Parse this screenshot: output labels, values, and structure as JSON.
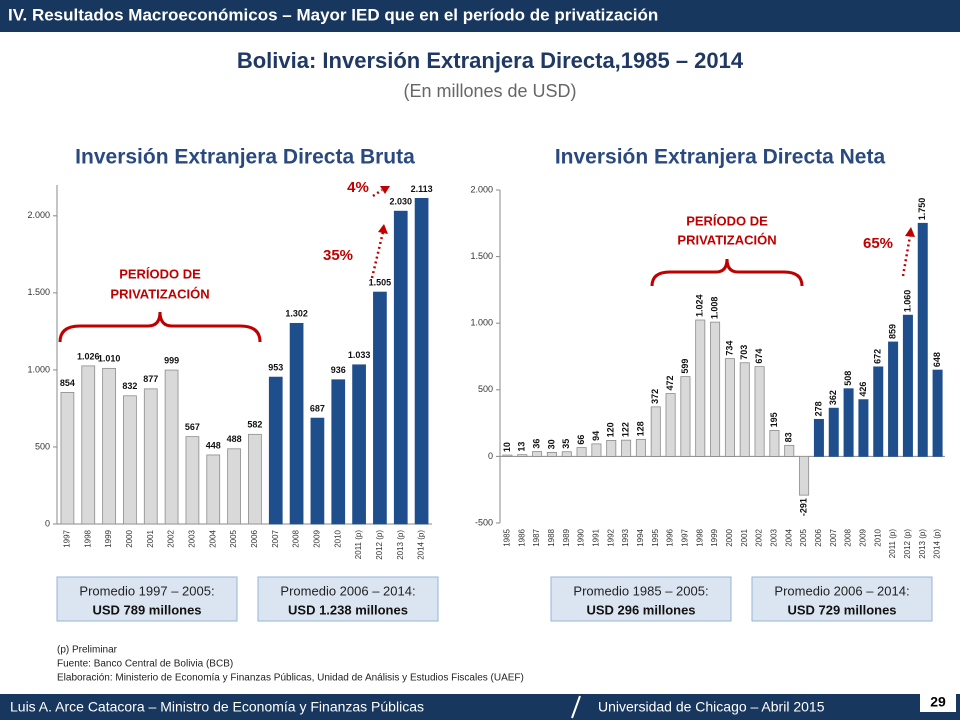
{
  "header": "IV. Resultados Macroeconómicos – Mayor IED que en el período de privatización",
  "title": "Bolivia: Inversión Extranjera Directa,1985 – 2014",
  "subtitle": "(En millones de USD)",
  "chart_data": [
    {
      "type": "bar",
      "title": "Inversión Extranjera Directa Bruta",
      "categories": [
        "1997",
        "1998",
        "1999",
        "2000",
        "2001",
        "2002",
        "2003",
        "2004",
        "2005",
        "2006",
        "2007",
        "2008",
        "2009",
        "2010",
        "2011 (p)",
        "2012 (p)",
        "2013 (p)",
        "2014 (p)"
      ],
      "values": [
        854,
        1026,
        1010,
        832,
        877,
        999,
        567,
        448,
        488,
        582,
        953,
        1302,
        687,
        936,
        1033,
        1505,
        2030,
        2113
      ],
      "value_labels": [
        "854",
        "1.026",
        "1.010",
        "832",
        "877",
        "999",
        "567",
        "448",
        "488",
        "582",
        "953",
        "1.302",
        "687",
        "936",
        "1.033",
        "1.505",
        "2.030",
        "2.113"
      ],
      "colors": [
        "#d9d9d9",
        "#d9d9d9",
        "#d9d9d9",
        "#d9d9d9",
        "#d9d9d9",
        "#d9d9d9",
        "#d9d9d9",
        "#d9d9d9",
        "#d9d9d9",
        "#d9d9d9",
        "#1f4e8c",
        "#1f4e8c",
        "#1f4e8c",
        "#1f4e8c",
        "#1f4e8c",
        "#1f4e8c",
        "#1f4e8c",
        "#1f4e8c"
      ],
      "ylim": [
        0,
        2200
      ],
      "yticks": [
        0,
        500,
        {
          "value": 1000,
          "label": "1.000"
        },
        {
          "value": 1500,
          "label": "1.500"
        },
        {
          "value": 2000,
          "label": "2.000"
        }
      ],
      "annotations": [
        "PERÍODO DE",
        "PRIVATIZACIÓN",
        "35%",
        "4%"
      ],
      "averages": [
        {
          "label": "Promedio 1997 – 2005:",
          "value": "USD 789 millones"
        },
        {
          "label": "Promedio 2006 – 2014:",
          "value": "USD 1.238 millones"
        }
      ]
    },
    {
      "type": "bar",
      "title": "Inversión Extranjera Directa Neta",
      "categories": [
        "1985",
        "1986",
        "1987",
        "1988",
        "1989",
        "1990",
        "1991",
        "1992",
        "1993",
        "1994",
        "1995",
        "1996",
        "1997",
        "1998",
        "1999",
        "2000",
        "2001",
        "2002",
        "2003",
        "2004",
        "2005",
        "2006",
        "2007",
        "2008",
        "2009",
        "2010",
        "2011 (p)",
        "2012 (p)",
        "2013 (p)",
        "2014 (p)"
      ],
      "values": [
        10,
        13,
        36,
        30,
        35,
        66,
        94,
        120,
        122,
        128,
        372,
        472,
        599,
        1024,
        1008,
        734,
        703,
        674,
        195,
        83,
        -291,
        278,
        362,
        508,
        426,
        672,
        859,
        1060,
        1750,
        648
      ],
      "value_labels": [
        "10",
        "13",
        "36",
        "30",
        "35",
        "66",
        "94",
        "120",
        "122",
        "128",
        "372",
        "472",
        "599",
        "1.024",
        "1.008",
        "734",
        "703",
        "674",
        "195",
        "83",
        "-291",
        "278",
        "362",
        "508",
        "426",
        "672",
        "859",
        "1.060",
        "1.750",
        "648"
      ],
      "colors": [
        "#d9d9d9",
        "#d9d9d9",
        "#d9d9d9",
        "#d9d9d9",
        "#d9d9d9",
        "#d9d9d9",
        "#d9d9d9",
        "#d9d9d9",
        "#d9d9d9",
        "#d9d9d9",
        "#d9d9d9",
        "#d9d9d9",
        "#d9d9d9",
        "#d9d9d9",
        "#d9d9d9",
        "#d9d9d9",
        "#d9d9d9",
        "#d9d9d9",
        "#d9d9d9",
        "#d9d9d9",
        "#d9d9d9",
        "#1f4e8c",
        "#1f4e8c",
        "#1f4e8c",
        "#1f4e8c",
        "#1f4e8c",
        "#1f4e8c",
        "#1f4e8c",
        "#1f4e8c",
        "#1f4e8c"
      ],
      "ylim": [
        -500,
        2000
      ],
      "yticks": [
        -500,
        0,
        500,
        {
          "value": 1000,
          "label": "1.000"
        },
        {
          "value": 1500,
          "label": "1.500"
        },
        {
          "value": 2000,
          "label": "2.000"
        }
      ],
      "annotations": [
        "PERÍODO DE",
        "PRIVATIZACIÓN",
        "65%"
      ],
      "averages": [
        {
          "label": "Promedio 1985 – 2005:",
          "value": "USD 296 millones"
        },
        {
          "label": "Promedio 2006 – 2014:",
          "value": "USD 729 millones"
        }
      ]
    }
  ],
  "notes": [
    "(p) Preliminar",
    "Fuente: Banco Central de Bolivia (BCB)",
    "Elaboración: Ministerio de Economía y Finanzas Públicas, Unidad de Análisis y Estudios Fiscales (UAEF)"
  ],
  "footer": {
    "left": "Luis A. Arce Catacora – Ministro de Economía y Finanzas Públicas",
    "right": "Universidad de Chicago – Abril 2015",
    "page": "29"
  }
}
